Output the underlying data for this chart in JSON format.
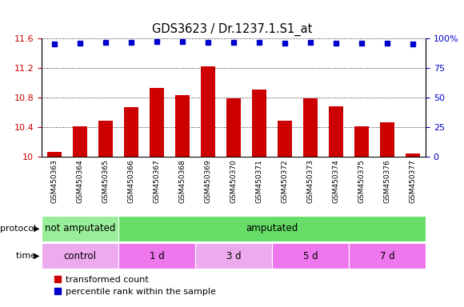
{
  "title": "GDS3623 / Dr.1237.1.S1_at",
  "samples": [
    "GSM450363",
    "GSM450364",
    "GSM450365",
    "GSM450366",
    "GSM450367",
    "GSM450368",
    "GSM450369",
    "GSM450370",
    "GSM450371",
    "GSM450372",
    "GSM450373",
    "GSM450374",
    "GSM450375",
    "GSM450376",
    "GSM450377"
  ],
  "bar_values": [
    10.07,
    10.41,
    10.49,
    10.67,
    10.93,
    10.83,
    11.22,
    10.79,
    10.91,
    10.49,
    10.79,
    10.68,
    10.41,
    10.46,
    10.04
  ],
  "dot_values": [
    11.52,
    11.53,
    11.55,
    11.55,
    11.56,
    11.56,
    11.55,
    11.55,
    11.55,
    11.54,
    11.55,
    11.54,
    11.54,
    11.54,
    11.52
  ],
  "bar_color": "#cc0000",
  "dot_color": "#0000cc",
  "ylim_left": [
    10.0,
    11.6
  ],
  "ylim_right": [
    0,
    100
  ],
  "yticks_left": [
    10.0,
    10.4,
    10.8,
    11.2,
    11.6
  ],
  "ytick_labels_left": [
    "10",
    "10.4",
    "10.8",
    "11.2",
    "11.6"
  ],
  "yticks_right": [
    0,
    25,
    50,
    75,
    100
  ],
  "ytick_labels_right": [
    "0",
    "25",
    "50",
    "75",
    "100%"
  ],
  "protocol_groups": [
    {
      "label": "not amputated",
      "start": 0,
      "end": 3,
      "color": "#99ee99"
    },
    {
      "label": "amputated",
      "start": 3,
      "end": 15,
      "color": "#66dd66"
    }
  ],
  "time_groups": [
    {
      "label": "control",
      "start": 0,
      "end": 3,
      "color": "#eeaaee"
    },
    {
      "label": "1 d",
      "start": 3,
      "end": 6,
      "color": "#ee77ee"
    },
    {
      "label": "3 d",
      "start": 6,
      "end": 9,
      "color": "#eeaaee"
    },
    {
      "label": "5 d",
      "start": 9,
      "end": 12,
      "color": "#ee77ee"
    },
    {
      "label": "7 d",
      "start": 12,
      "end": 15,
      "color": "#ee77ee"
    }
  ],
  "protocol_label": "protocol",
  "time_label": "time",
  "legend_bar": "transformed count",
  "legend_dot": "percentile rank within the sample",
  "background_color": "#ffffff",
  "xtick_band_color": "#dddddd",
  "bar_width": 0.55
}
